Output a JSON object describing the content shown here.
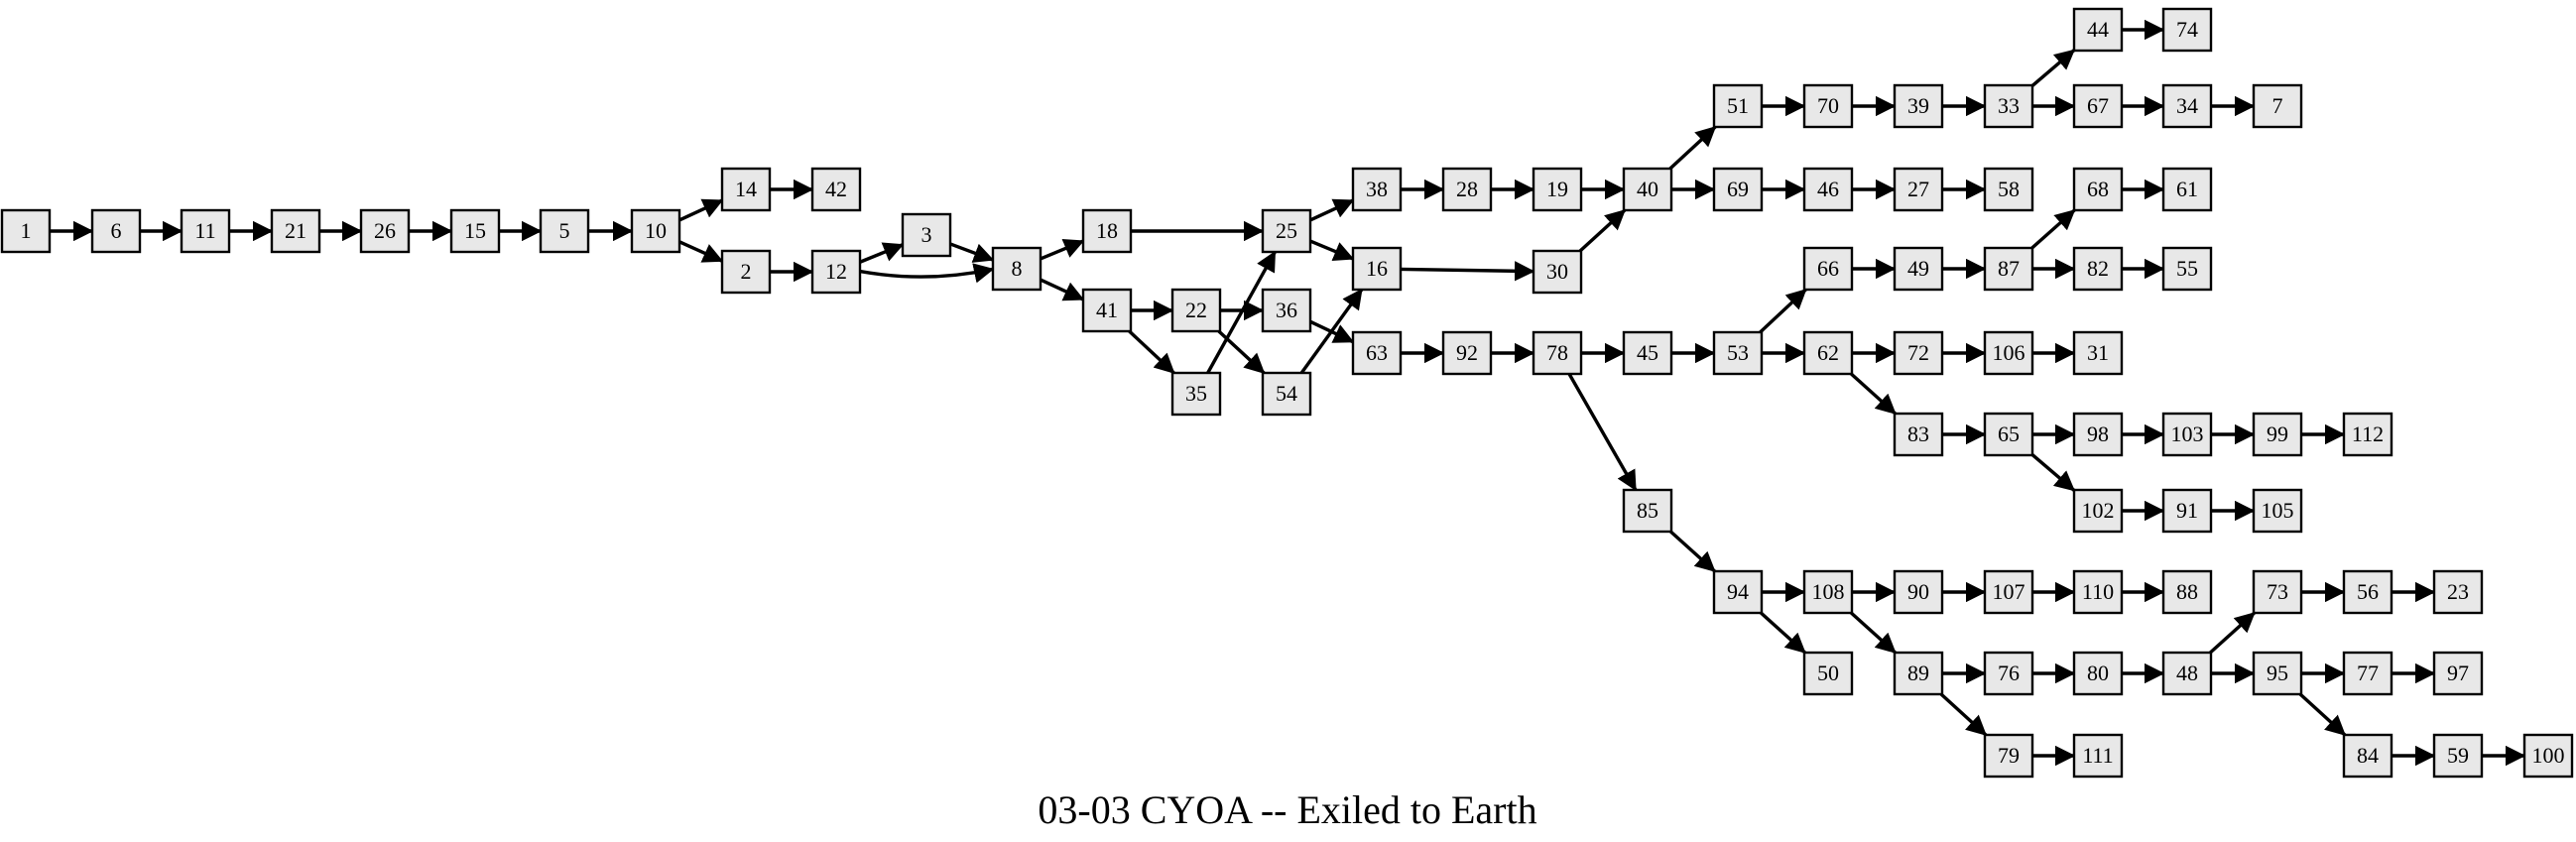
{
  "title": "03-03 CYOA -- Exiled to Earth",
  "nodes": [
    "1",
    "6",
    "11",
    "21",
    "26",
    "15",
    "5",
    "10",
    "14",
    "42",
    "2",
    "12",
    "3",
    "8",
    "18",
    "41",
    "22",
    "36",
    "35",
    "54",
    "25",
    "38",
    "16",
    "28",
    "19",
    "40",
    "30",
    "51",
    "69",
    "70",
    "39",
    "33",
    "44",
    "74",
    "67",
    "34",
    "7",
    "46",
    "27",
    "58",
    "63",
    "92",
    "78",
    "45",
    "53",
    "66",
    "49",
    "87",
    "68",
    "61",
    "82",
    "55",
    "62",
    "72",
    "106",
    "31",
    "83",
    "65",
    "98",
    "103",
    "99",
    "112",
    "102",
    "91",
    "105",
    "85",
    "94",
    "108",
    "90",
    "107",
    "110",
    "88",
    "89",
    "76",
    "80",
    "48",
    "73",
    "56",
    "23",
    "95",
    "77",
    "97",
    "84",
    "59",
    "100",
    "79",
    "111",
    "50"
  ],
  "edges": [
    [
      "1",
      "6"
    ],
    [
      "6",
      "11"
    ],
    [
      "11",
      "21"
    ],
    [
      "21",
      "26"
    ],
    [
      "26",
      "15"
    ],
    [
      "15",
      "5"
    ],
    [
      "5",
      "10"
    ],
    [
      "10",
      "14"
    ],
    [
      "14",
      "42"
    ],
    [
      "10",
      "2"
    ],
    [
      "2",
      "12"
    ],
    [
      "12",
      "3"
    ],
    [
      "12",
      "8"
    ],
    [
      "3",
      "8"
    ],
    [
      "8",
      "18"
    ],
    [
      "8",
      "41"
    ],
    [
      "18",
      "25"
    ],
    [
      "41",
      "22"
    ],
    [
      "41",
      "35"
    ],
    [
      "22",
      "36"
    ],
    [
      "22",
      "54"
    ],
    [
      "35",
      "25"
    ],
    [
      "54",
      "16"
    ],
    [
      "36",
      "63"
    ],
    [
      "25",
      "38"
    ],
    [
      "25",
      "16"
    ],
    [
      "38",
      "28"
    ],
    [
      "28",
      "19"
    ],
    [
      "19",
      "40"
    ],
    [
      "16",
      "30"
    ],
    [
      "30",
      "40"
    ],
    [
      "40",
      "51"
    ],
    [
      "40",
      "69"
    ],
    [
      "51",
      "70"
    ],
    [
      "70",
      "39"
    ],
    [
      "39",
      "33"
    ],
    [
      "33",
      "44"
    ],
    [
      "44",
      "74"
    ],
    [
      "33",
      "67"
    ],
    [
      "67",
      "34"
    ],
    [
      "34",
      "7"
    ],
    [
      "69",
      "46"
    ],
    [
      "46",
      "27"
    ],
    [
      "27",
      "58"
    ],
    [
      "63",
      "92"
    ],
    [
      "92",
      "78"
    ],
    [
      "78",
      "45"
    ],
    [
      "78",
      "85"
    ],
    [
      "45",
      "53"
    ],
    [
      "53",
      "66"
    ],
    [
      "53",
      "62"
    ],
    [
      "66",
      "49"
    ],
    [
      "49",
      "87"
    ],
    [
      "87",
      "68"
    ],
    [
      "68",
      "61"
    ],
    [
      "87",
      "82"
    ],
    [
      "82",
      "55"
    ],
    [
      "62",
      "72"
    ],
    [
      "72",
      "106"
    ],
    [
      "106",
      "31"
    ],
    [
      "62",
      "83"
    ],
    [
      "83",
      "65"
    ],
    [
      "65",
      "98"
    ],
    [
      "98",
      "103"
    ],
    [
      "103",
      "99"
    ],
    [
      "99",
      "112"
    ],
    [
      "65",
      "102"
    ],
    [
      "102",
      "91"
    ],
    [
      "91",
      "105"
    ],
    [
      "85",
      "94"
    ],
    [
      "94",
      "108"
    ],
    [
      "94",
      "50"
    ],
    [
      "108",
      "90"
    ],
    [
      "90",
      "107"
    ],
    [
      "107",
      "110"
    ],
    [
      "110",
      "88"
    ],
    [
      "108",
      "89"
    ],
    [
      "89",
      "76"
    ],
    [
      "76",
      "80"
    ],
    [
      "80",
      "48"
    ],
    [
      "48",
      "73"
    ],
    [
      "73",
      "56"
    ],
    [
      "56",
      "23"
    ],
    [
      "48",
      "95"
    ],
    [
      "95",
      "77"
    ],
    [
      "77",
      "97"
    ],
    [
      "95",
      "84"
    ],
    [
      "84",
      "59"
    ],
    [
      "59",
      "100"
    ],
    [
      "89",
      "79"
    ],
    [
      "79",
      "111"
    ]
  ]
}
